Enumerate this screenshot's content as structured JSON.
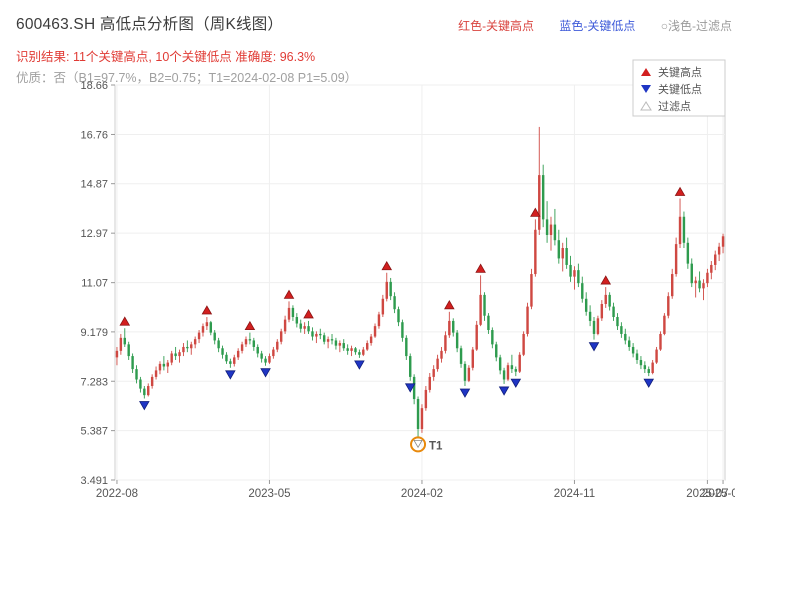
{
  "header": {
    "title": "600463.SH 高低点分析图（周K线图）",
    "legend_top": [
      {
        "label": "红色-关键高点",
        "color": "#d9443f"
      },
      {
        "label": "蓝色-关键低点",
        "color": "#3f5bd9"
      },
      {
        "label": "○浅色-过滤点",
        "color": "#9b9b9b"
      }
    ],
    "result_line": "识别结果: 11个关键高点, 10个关键低点  准确度: 96.3%",
    "quality_line": "优质：否（B1=97.7%，B2=0.75；T1=2024-02-08 P1=5.09）"
  },
  "chart_data": {
    "type": "candlestick",
    "title": "",
    "xlabel": "",
    "ylabel": "",
    "grid": true,
    "legend_position": "top-right",
    "ylim": [
      3.491,
      18.66
    ],
    "yticks": [
      3.491,
      5.387,
      7.283,
      9.179,
      11.07,
      12.97,
      14.87,
      16.76,
      18.66
    ],
    "xticks": [
      {
        "index": 0,
        "label": "2022-08"
      },
      {
        "index": 39,
        "label": "2023-05"
      },
      {
        "index": 78,
        "label": "2024-02"
      },
      {
        "index": 117,
        "label": "2024-11"
      },
      {
        "index": 151,
        "label": "2025-07"
      },
      {
        "index": 155,
        "label": "2025-08"
      }
    ],
    "candles": [
      [
        8.2,
        8.6,
        7.9,
        8.45
      ],
      [
        8.45,
        9.1,
        8.3,
        8.95
      ],
      [
        8.95,
        9.32,
        8.6,
        8.7
      ],
      [
        8.7,
        8.8,
        8.1,
        8.25
      ],
      [
        8.25,
        8.35,
        7.6,
        7.75
      ],
      [
        7.75,
        7.9,
        7.2,
        7.35
      ],
      [
        7.35,
        7.45,
        6.85,
        7.0
      ],
      [
        7.0,
        7.1,
        6.62,
        6.75
      ],
      [
        6.75,
        7.2,
        6.7,
        7.1
      ],
      [
        7.1,
        7.55,
        7.0,
        7.45
      ],
      [
        7.45,
        7.85,
        7.35,
        7.7
      ],
      [
        7.7,
        8.05,
        7.55,
        7.95
      ],
      [
        7.95,
        8.25,
        7.7,
        7.85
      ],
      [
        7.85,
        8.1,
        7.6,
        8.0
      ],
      [
        8.0,
        8.45,
        7.9,
        8.35
      ],
      [
        8.35,
        8.6,
        8.1,
        8.25
      ],
      [
        8.25,
        8.5,
        8.0,
        8.4
      ],
      [
        8.4,
        8.75,
        8.25,
        8.6
      ],
      [
        8.6,
        8.85,
        8.4,
        8.55
      ],
      [
        8.55,
        8.8,
        8.3,
        8.7
      ],
      [
        8.7,
        9.0,
        8.55,
        8.9
      ],
      [
        8.9,
        9.25,
        8.75,
        9.15
      ],
      [
        9.15,
        9.5,
        9.0,
        9.4
      ],
      [
        9.4,
        9.75,
        9.25,
        9.55
      ],
      [
        9.55,
        9.6,
        9.05,
        9.15
      ],
      [
        9.15,
        9.25,
        8.7,
        8.85
      ],
      [
        8.85,
        8.95,
        8.4,
        8.55
      ],
      [
        8.55,
        8.65,
        8.15,
        8.3
      ],
      [
        8.3,
        8.4,
        7.95,
        8.05
      ],
      [
        8.05,
        8.15,
        7.8,
        7.95
      ],
      [
        7.95,
        8.3,
        7.85,
        8.2
      ],
      [
        8.2,
        8.55,
        8.1,
        8.45
      ],
      [
        8.45,
        8.8,
        8.35,
        8.7
      ],
      [
        8.7,
        9.0,
        8.6,
        8.9
      ],
      [
        8.9,
        9.15,
        8.7,
        8.85
      ],
      [
        8.85,
        8.95,
        8.45,
        8.6
      ],
      [
        8.6,
        8.7,
        8.2,
        8.35
      ],
      [
        8.35,
        8.45,
        8.0,
        8.15
      ],
      [
        8.15,
        8.25,
        7.88,
        8.0
      ],
      [
        8.0,
        8.35,
        7.95,
        8.25
      ],
      [
        8.25,
        8.6,
        8.15,
        8.5
      ],
      [
        8.5,
        8.9,
        8.4,
        8.8
      ],
      [
        8.8,
        9.3,
        8.7,
        9.2
      ],
      [
        9.2,
        9.8,
        9.1,
        9.65
      ],
      [
        9.65,
        10.35,
        9.55,
        10.1
      ],
      [
        10.1,
        10.2,
        9.6,
        9.75
      ],
      [
        9.75,
        9.9,
        9.35,
        9.5
      ],
      [
        9.5,
        9.65,
        9.15,
        9.3
      ],
      [
        9.3,
        9.55,
        9.1,
        9.4
      ],
      [
        9.4,
        9.6,
        9.1,
        9.2
      ],
      [
        9.2,
        9.35,
        8.85,
        9.0
      ],
      [
        9.0,
        9.2,
        8.75,
        9.1
      ],
      [
        9.1,
        9.3,
        8.9,
        9.05
      ],
      [
        9.05,
        9.15,
        8.7,
        8.8
      ],
      [
        8.8,
        9.0,
        8.55,
        8.9
      ],
      [
        8.9,
        9.1,
        8.7,
        8.85
      ],
      [
        8.85,
        8.95,
        8.5,
        8.65
      ],
      [
        8.65,
        8.85,
        8.4,
        8.75
      ],
      [
        8.75,
        8.9,
        8.45,
        8.55
      ],
      [
        8.55,
        8.7,
        8.3,
        8.45
      ],
      [
        8.45,
        8.65,
        8.25,
        8.55
      ],
      [
        8.55,
        8.6,
        8.3,
        8.4
      ],
      [
        8.4,
        8.5,
        8.18,
        8.3
      ],
      [
        8.3,
        8.6,
        8.25,
        8.5
      ],
      [
        8.5,
        8.85,
        8.45,
        8.75
      ],
      [
        8.75,
        9.1,
        8.65,
        9.0
      ],
      [
        9.0,
        9.5,
        8.95,
        9.4
      ],
      [
        9.4,
        9.95,
        9.3,
        9.85
      ],
      [
        9.85,
        10.6,
        9.75,
        10.45
      ],
      [
        10.45,
        11.45,
        10.35,
        11.1
      ],
      [
        11.1,
        11.25,
        10.4,
        10.55
      ],
      [
        10.55,
        10.7,
        9.9,
        10.05
      ],
      [
        10.05,
        10.15,
        9.4,
        9.55
      ],
      [
        9.55,
        9.65,
        8.8,
        8.95
      ],
      [
        8.95,
        9.05,
        8.1,
        8.25
      ],
      [
        8.25,
        8.35,
        7.3,
        7.45
      ],
      [
        7.45,
        7.55,
        6.4,
        6.6
      ],
      [
        6.6,
        6.7,
        5.09,
        5.45
      ],
      [
        5.45,
        6.4,
        5.3,
        6.25
      ],
      [
        6.25,
        7.1,
        6.15,
        6.95
      ],
      [
        6.95,
        7.6,
        6.85,
        7.45
      ],
      [
        7.45,
        7.9,
        7.3,
        7.75
      ],
      [
        7.75,
        8.3,
        7.65,
        8.15
      ],
      [
        8.15,
        8.6,
        8.0,
        8.45
      ],
      [
        8.45,
        9.2,
        8.35,
        9.05
      ],
      [
        9.05,
        9.95,
        8.95,
        9.6
      ],
      [
        9.6,
        9.7,
        9.0,
        9.15
      ],
      [
        9.15,
        9.25,
        8.4,
        8.55
      ],
      [
        8.55,
        8.65,
        7.8,
        7.95
      ],
      [
        7.95,
        8.05,
        7.1,
        7.3
      ],
      [
        7.3,
        7.9,
        7.25,
        7.8
      ],
      [
        7.8,
        8.6,
        7.7,
        8.5
      ],
      [
        8.5,
        9.6,
        8.45,
        9.45
      ],
      [
        9.45,
        11.35,
        9.4,
        10.6
      ],
      [
        10.6,
        10.7,
        9.6,
        9.8
      ],
      [
        9.8,
        9.9,
        9.1,
        9.25
      ],
      [
        9.25,
        9.35,
        8.55,
        8.7
      ],
      [
        8.7,
        8.8,
        8.05,
        8.2
      ],
      [
        8.2,
        8.3,
        7.55,
        7.7
      ],
      [
        7.7,
        7.8,
        7.18,
        7.35
      ],
      [
        7.35,
        8.0,
        7.3,
        7.9
      ],
      [
        7.9,
        8.3,
        7.6,
        7.75
      ],
      [
        7.75,
        7.85,
        7.48,
        7.65
      ],
      [
        7.65,
        8.4,
        7.6,
        8.3
      ],
      [
        8.3,
        9.2,
        8.25,
        9.1
      ],
      [
        9.1,
        10.3,
        9.0,
        10.15
      ],
      [
        10.15,
        11.6,
        10.05,
        11.4
      ],
      [
        11.4,
        13.5,
        11.3,
        13.1
      ],
      [
        13.1,
        17.05,
        12.9,
        15.2
      ],
      [
        15.2,
        15.6,
        13.2,
        13.5
      ],
      [
        13.5,
        14.2,
        12.6,
        12.9
      ],
      [
        12.9,
        13.6,
        12.3,
        13.3
      ],
      [
        13.3,
        13.9,
        12.5,
        12.7
      ],
      [
        12.7,
        13.1,
        11.8,
        12.0
      ],
      [
        12.0,
        12.6,
        11.5,
        12.4
      ],
      [
        12.4,
        12.8,
        11.6,
        11.75
      ],
      [
        11.75,
        12.1,
        11.1,
        11.3
      ],
      [
        11.3,
        11.7,
        10.8,
        11.55
      ],
      [
        11.55,
        11.8,
        10.9,
        11.05
      ],
      [
        11.05,
        11.3,
        10.3,
        10.45
      ],
      [
        10.45,
        10.7,
        9.8,
        9.95
      ],
      [
        9.95,
        10.2,
        9.4,
        9.6
      ],
      [
        9.6,
        9.75,
        8.88,
        9.1
      ],
      [
        9.1,
        9.8,
        9.05,
        9.7
      ],
      [
        9.7,
        10.4,
        9.6,
        10.25
      ],
      [
        10.25,
        10.9,
        10.1,
        10.6
      ],
      [
        10.6,
        10.7,
        10.0,
        10.15
      ],
      [
        10.15,
        10.3,
        9.6,
        9.75
      ],
      [
        9.75,
        9.9,
        9.25,
        9.4
      ],
      [
        9.4,
        9.55,
        8.95,
        9.1
      ],
      [
        9.1,
        9.3,
        8.7,
        8.85
      ],
      [
        8.85,
        9.0,
        8.45,
        8.6
      ],
      [
        8.6,
        8.75,
        8.2,
        8.35
      ],
      [
        8.35,
        8.5,
        7.95,
        8.1
      ],
      [
        8.1,
        8.25,
        7.75,
        7.9
      ],
      [
        7.9,
        8.05,
        7.6,
        7.75
      ],
      [
        7.75,
        7.85,
        7.48,
        7.6
      ],
      [
        7.6,
        8.1,
        7.55,
        8.0
      ],
      [
        8.0,
        8.6,
        7.95,
        8.5
      ],
      [
        8.5,
        9.2,
        8.45,
        9.1
      ],
      [
        9.1,
        9.9,
        9.05,
        9.8
      ],
      [
        9.8,
        10.7,
        9.7,
        10.55
      ],
      [
        10.55,
        11.6,
        10.45,
        11.4
      ],
      [
        11.4,
        12.8,
        11.3,
        12.55
      ],
      [
        12.55,
        14.3,
        12.4,
        13.6
      ],
      [
        13.6,
        13.8,
        12.4,
        12.6
      ],
      [
        12.6,
        12.8,
        11.6,
        11.8
      ],
      [
        11.8,
        12.0,
        10.9,
        11.05
      ],
      [
        11.05,
        11.3,
        10.5,
        11.15
      ],
      [
        11.15,
        11.5,
        10.7,
        10.85
      ],
      [
        10.85,
        11.2,
        10.4,
        11.05
      ],
      [
        11.05,
        11.6,
        10.9,
        11.45
      ],
      [
        11.45,
        11.9,
        11.2,
        11.75
      ],
      [
        11.75,
        12.3,
        11.55,
        12.15
      ],
      [
        12.15,
        12.6,
        11.9,
        12.45
      ],
      [
        12.45,
        12.95,
        12.2,
        12.85
      ]
    ],
    "key_highs": [
      2,
      23,
      34,
      44,
      49,
      69,
      85,
      93,
      107,
      125,
      144
    ],
    "key_lows": [
      7,
      29,
      38,
      62,
      75,
      89,
      99,
      102,
      122,
      136
    ],
    "filter_points": [
      {
        "index": 77,
        "label": "T1",
        "price": 5.09
      }
    ],
    "colors": {
      "up": "#cf4842",
      "down": "#2e9b4e",
      "key_high": "#d21f1f",
      "key_high_edge": "#8a1414",
      "key_low": "#1f35c4",
      "key_low_edge": "#101e7a",
      "filter": "#e8890c",
      "grid": "#efefef",
      "border": "#cfcfcf"
    },
    "legend": [
      {
        "label": "关键高点",
        "marker": "up-triangle",
        "color": "#d21f1f"
      },
      {
        "label": "关键低点",
        "marker": "down-triangle",
        "color": "#1f35c4"
      },
      {
        "label": "过滤点",
        "marker": "hollow-triangle",
        "color": "#bbbbbb"
      }
    ]
  }
}
